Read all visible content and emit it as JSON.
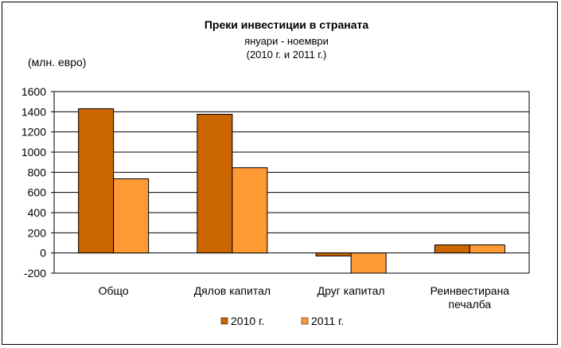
{
  "chart_data": {
    "type": "bar",
    "title": "Преки инвестиции  в страната",
    "subtitle_lines": [
      "януари - ноември",
      "(2010 г. и 2011 г.)"
    ],
    "unit_label": "(млн. евро)",
    "categories": [
      "Общо",
      "Дялов капитал",
      "Друг капитал",
      "Реинвестирана печалба"
    ],
    "category_lines": [
      [
        "Общо"
      ],
      [
        "Дялов капитал"
      ],
      [
        "Друг капитал"
      ],
      [
        "Реинвестирана",
        "печалба"
      ]
    ],
    "series": [
      {
        "name": "2010 г.",
        "values": [
          1430,
          1375,
          -30,
          80
        ],
        "color": "#CC6600"
      },
      {
        "name": "2011 г.",
        "values": [
          735,
          845,
          -200,
          80
        ],
        "color": "#FF9933"
      }
    ],
    "ylim": [
      -200,
      1600
    ],
    "yticks": [
      1600,
      1400,
      1200,
      1000,
      800,
      600,
      400,
      200,
      0,
      -200
    ],
    "grid": true,
    "legend_position": "bottom"
  }
}
